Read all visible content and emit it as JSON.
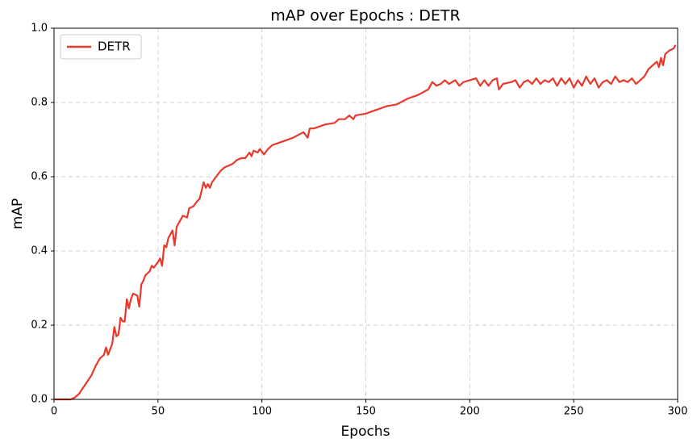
{
  "chart_data": {
    "type": "line",
    "title": "mAP over Epochs : DETR",
    "x_label": "Epochs",
    "y_label": "mAP",
    "x": [
      0,
      5,
      8,
      10,
      12,
      15,
      18,
      20,
      22,
      24,
      25,
      26,
      28,
      29,
      30,
      31,
      32,
      33,
      34,
      35,
      36,
      37,
      38,
      40,
      41,
      42,
      43,
      44,
      46,
      47,
      48,
      50,
      51,
      52,
      53,
      54,
      55,
      56,
      57,
      58,
      59,
      60,
      62,
      64,
      65,
      67,
      69,
      70,
      72,
      73,
      74,
      75,
      76,
      78,
      80,
      82,
      84,
      86,
      88,
      90,
      92,
      94,
      95,
      96,
      98,
      99,
      101,
      103,
      105,
      110,
      115,
      120,
      122,
      123,
      125,
      130,
      135,
      137,
      140,
      142,
      144,
      145,
      150,
      155,
      160,
      165,
      170,
      175,
      180,
      182,
      184,
      186,
      188,
      190,
      193,
      195,
      197,
      200,
      203,
      205,
      207,
      209,
      211,
      213,
      214,
      216,
      220,
      222,
      224,
      226,
      228,
      230,
      232,
      234,
      236,
      238,
      240,
      242,
      244,
      246,
      248,
      250,
      252,
      254,
      256,
      258,
      260,
      262,
      264,
      266,
      268,
      270,
      272,
      274,
      276,
      278,
      280,
      282,
      284,
      286,
      288,
      290,
      291,
      292,
      293,
      294,
      296,
      298,
      299
    ],
    "series": [
      {
        "name": "DETR",
        "color": "#e8392b",
        "values": [
          0,
          0,
          0,
          0.005,
          0.015,
          0.04,
          0.065,
          0.09,
          0.11,
          0.12,
          0.14,
          0.12,
          0.15,
          0.195,
          0.17,
          0.175,
          0.22,
          0.21,
          0.21,
          0.27,
          0.245,
          0.27,
          0.285,
          0.28,
          0.25,
          0.31,
          0.32,
          0.335,
          0.345,
          0.36,
          0.355,
          0.37,
          0.38,
          0.36,
          0.415,
          0.41,
          0.435,
          0.445,
          0.455,
          0.415,
          0.465,
          0.475,
          0.495,
          0.49,
          0.515,
          0.52,
          0.535,
          0.54,
          0.585,
          0.57,
          0.58,
          0.57,
          0.585,
          0.6,
          0.615,
          0.625,
          0.63,
          0.635,
          0.645,
          0.65,
          0.65,
          0.665,
          0.655,
          0.67,
          0.665,
          0.675,
          0.66,
          0.675,
          0.685,
          0.695,
          0.705,
          0.72,
          0.705,
          0.73,
          0.73,
          0.74,
          0.745,
          0.755,
          0.755,
          0.765,
          0.755,
          0.765,
          0.77,
          0.78,
          0.79,
          0.795,
          0.81,
          0.82,
          0.835,
          0.855,
          0.845,
          0.85,
          0.86,
          0.85,
          0.86,
          0.845,
          0.855,
          0.86,
          0.865,
          0.845,
          0.86,
          0.845,
          0.86,
          0.865,
          0.835,
          0.85,
          0.855,
          0.86,
          0.84,
          0.855,
          0.86,
          0.85,
          0.865,
          0.85,
          0.86,
          0.855,
          0.865,
          0.845,
          0.865,
          0.85,
          0.865,
          0.84,
          0.86,
          0.845,
          0.87,
          0.85,
          0.865,
          0.84,
          0.855,
          0.86,
          0.85,
          0.87,
          0.855,
          0.86,
          0.855,
          0.865,
          0.85,
          0.86,
          0.87,
          0.89,
          0.9,
          0.91,
          0.895,
          0.92,
          0.9,
          0.93,
          0.94,
          0.945,
          0.955
        ]
      }
    ],
    "xlim": [
      0,
      300
    ],
    "xticks": [
      0,
      50,
      100,
      150,
      200,
      250,
      300
    ],
    "ylim": [
      0,
      1
    ],
    "yticks": [
      {
        "value": 0,
        "label": "0.0"
      },
      0.2,
      0.4,
      0.6,
      0.8,
      {
        "value": 1,
        "label": "1.0"
      }
    ],
    "grid": true,
    "legend": "upper left"
  }
}
